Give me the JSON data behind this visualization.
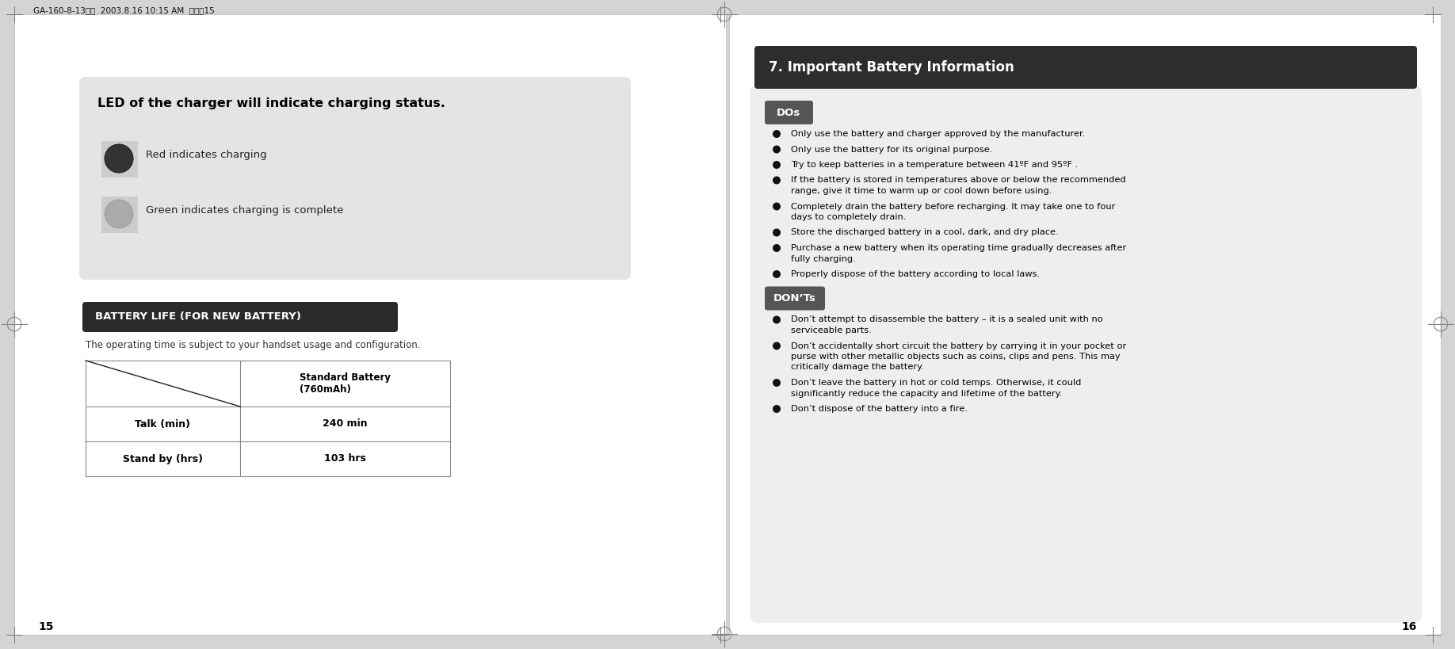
{
  "bg_color": "#d4d4d4",
  "left_page": {
    "led_title": "LED of the charger will indicate charging status.",
    "led_red_label": "Red indicates charging",
    "led_green_label": "Green indicates charging is complete",
    "battery_section_text": "BATTERY LIFE (FOR NEW BATTERY)",
    "battery_note": "The operating time is subject to your handset usage and configuration.",
    "table_col_header": "Standard Battery\n(760mAh)",
    "table_row1_label": "Talk (min)",
    "table_row1_val": "240 min",
    "table_row2_label": "Stand by (hrs)",
    "table_row2_val": "103 hrs",
    "page_number": "15"
  },
  "right_page": {
    "section_title": "7. Important Battery Information",
    "dos_text": "DOs",
    "donts_text": "DON’Ts",
    "dos_items": [
      "Only use the battery and charger approved by the manufacturer.",
      "Only use the battery for its original purpose.",
      "Try to keep batteries in a temperature between 41ºF and 95ºF .",
      "If the battery is stored in temperatures above or below the recommended\nrange, give it time to warm up or cool down before using.",
      "Completely drain the battery before recharging. It may take one to four\ndays to completely drain.",
      "Store the discharged battery in a cool, dark, and dry place.",
      "Purchase a new battery when its operating time gradually decreases after\nfully charging.",
      "Properly dispose of the battery according to local laws."
    ],
    "donts_items": [
      "Don’t attempt to disassemble the battery – it is a sealed unit with no\nserviceable parts.",
      "Don’t accidentally short circuit the battery by carrying it in your pocket or\npurse with other metallic objects such as coins, clips and pens. This may\ncritically damage the battery.",
      "Don’t leave the battery in hot or cold temps. Otherwise, it could\nsignificantly reduce the capacity and lifetime of the battery.",
      "Don’t dispose of the battery into a fire."
    ],
    "page_number": "16"
  },
  "header_text": "GA-160-8-13영문  2003.8.16 10:15 AM  페이직15"
}
